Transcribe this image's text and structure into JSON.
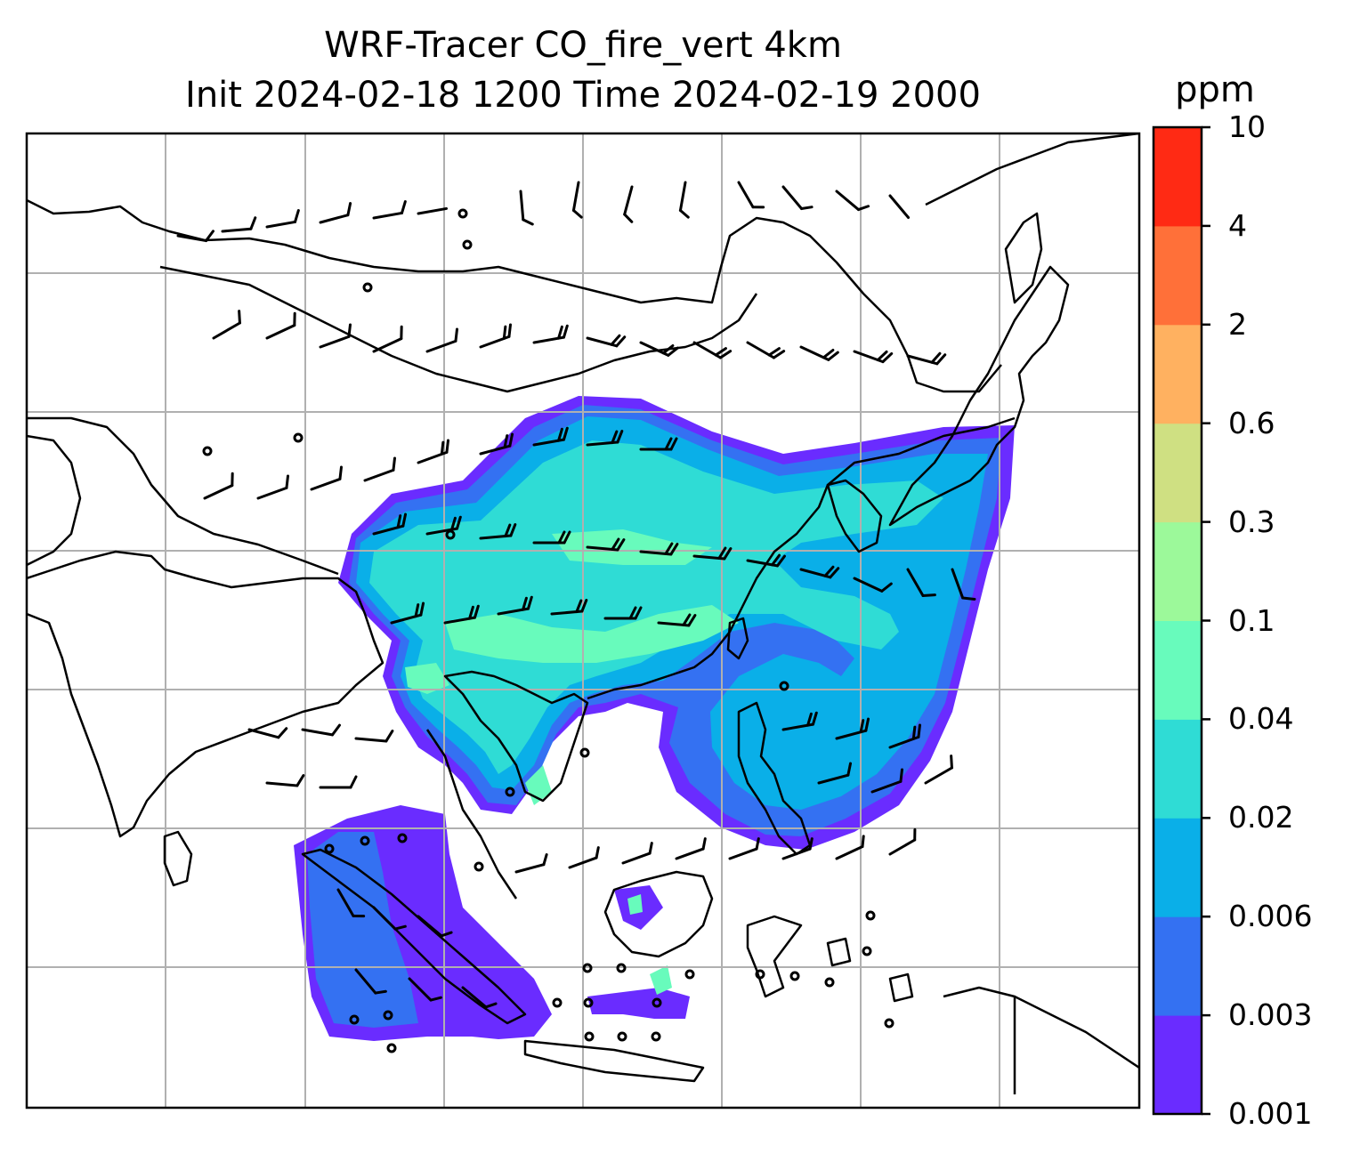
{
  "title": {
    "line1": "WRF-Tracer CO_fire_vert 4km",
    "line2": "Init 2024-02-18 1200 Time 2024-02-19 2000"
  },
  "colorbar": {
    "unit": "ppm",
    "levels": [
      "0.001",
      "0.003",
      "0.006",
      "0.02",
      "0.04",
      "0.1",
      "0.3",
      "0.6",
      "2",
      "4",
      "10"
    ],
    "colors": [
      "#6a2cff",
      "#3471f2",
      "#0aafe8",
      "#2fdcd5",
      "#68fbbc",
      "#9cf99a",
      "#cfe082",
      "#ffb160",
      "#ff7039",
      "#ff2a14"
    ]
  },
  "map": {
    "variable": "CO_fire_vert",
    "gridline_color": "#b0b0b0",
    "coastline_color": "#000000",
    "barb_color": "#000000"
  }
}
